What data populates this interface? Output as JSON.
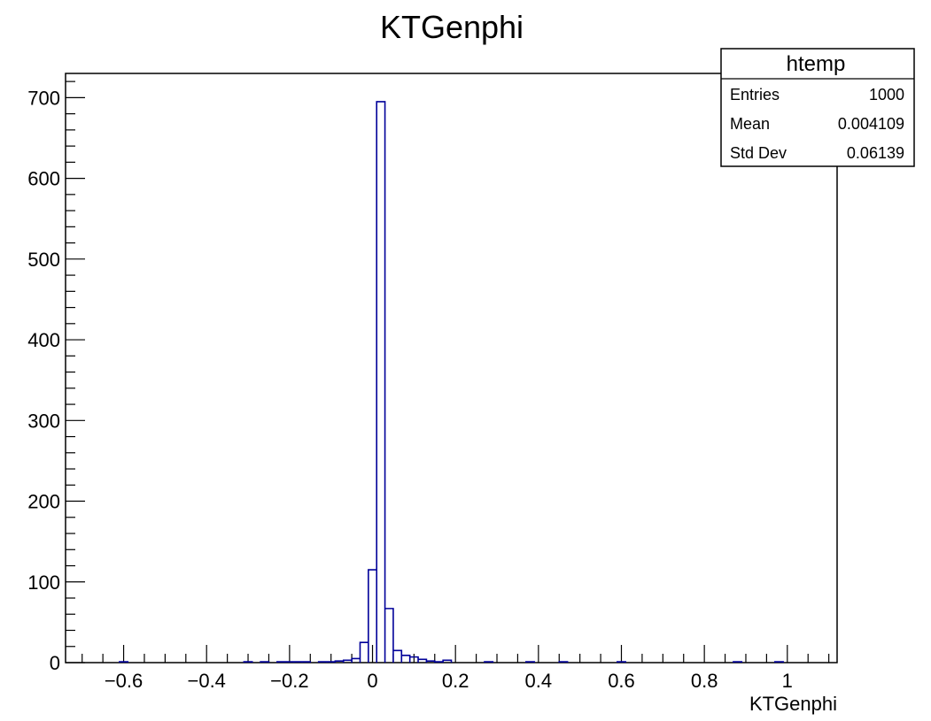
{
  "chart_data": {
    "type": "histogram",
    "title": "KTGenphi",
    "xlabel": "KTGenphi",
    "ylabel": "",
    "xlim": [
      -0.74,
      1.12
    ],
    "ylim": [
      0,
      730
    ],
    "grid": false,
    "x_ticks": [
      {
        "value": -0.6,
        "label": "−0.6"
      },
      {
        "value": -0.4,
        "label": "−0.4"
      },
      {
        "value": -0.2,
        "label": "−0.2"
      },
      {
        "value": 0,
        "label": "0"
      },
      {
        "value": 0.2,
        "label": "0.2"
      },
      {
        "value": 0.4,
        "label": "0.4"
      },
      {
        "value": 0.6,
        "label": "0.6"
      },
      {
        "value": 0.8,
        "label": "0.8"
      },
      {
        "value": 1,
        "label": "1"
      }
    ],
    "y_ticks": [
      {
        "value": 0,
        "label": "0"
      },
      {
        "value": 100,
        "label": "100"
      },
      {
        "value": 200,
        "label": "200"
      },
      {
        "value": 300,
        "label": "300"
      },
      {
        "value": 400,
        "label": "400"
      },
      {
        "value": 500,
        "label": "500"
      },
      {
        "value": 600,
        "label": "600"
      },
      {
        "value": 700,
        "label": "700"
      }
    ],
    "series": [
      {
        "color": "#000099",
        "bins": [
          {
            "x0": -0.61,
            "x1": -0.59,
            "y": 1
          },
          {
            "x0": -0.31,
            "x1": -0.29,
            "y": 1
          },
          {
            "x0": -0.27,
            "x1": -0.25,
            "y": 1
          },
          {
            "x0": -0.23,
            "x1": -0.19,
            "y": 1
          },
          {
            "x0": -0.19,
            "x1": -0.17,
            "y": 1
          },
          {
            "x0": -0.17,
            "x1": -0.15,
            "y": 1
          },
          {
            "x0": -0.13,
            "x1": -0.11,
            "y": 1
          },
          {
            "x0": -0.11,
            "x1": -0.09,
            "y": 1
          },
          {
            "x0": -0.09,
            "x1": -0.07,
            "y": 2
          },
          {
            "x0": -0.07,
            "x1": -0.05,
            "y": 3
          },
          {
            "x0": -0.05,
            "x1": -0.03,
            "y": 5
          },
          {
            "x0": -0.03,
            "x1": -0.01,
            "y": 25
          },
          {
            "x0": -0.01,
            "x1": 0.01,
            "y": 115
          },
          {
            "x0": 0.01,
            "x1": 0.03,
            "y": 695
          },
          {
            "x0": 0.03,
            "x1": 0.05,
            "y": 67
          },
          {
            "x0": 0.05,
            "x1": 0.07,
            "y": 15
          },
          {
            "x0": 0.07,
            "x1": 0.09,
            "y": 9
          },
          {
            "x0": 0.09,
            "x1": 0.11,
            "y": 7
          },
          {
            "x0": 0.11,
            "x1": 0.13,
            "y": 4
          },
          {
            "x0": 0.13,
            "x1": 0.15,
            "y": 2
          },
          {
            "x0": 0.15,
            "x1": 0.17,
            "y": 1
          },
          {
            "x0": 0.17,
            "x1": 0.19,
            "y": 3
          },
          {
            "x0": 0.27,
            "x1": 0.29,
            "y": 1
          },
          {
            "x0": 0.37,
            "x1": 0.39,
            "y": 1
          },
          {
            "x0": 0.45,
            "x1": 0.47,
            "y": 1
          },
          {
            "x0": 0.59,
            "x1": 0.61,
            "y": 1
          },
          {
            "x0": 0.87,
            "x1": 0.89,
            "y": 1
          },
          {
            "x0": 0.97,
            "x1": 0.99,
            "y": 1
          }
        ]
      }
    ]
  },
  "stats_box": {
    "title": "htemp",
    "rows": [
      {
        "label": "Entries",
        "value": "1000"
      },
      {
        "label": "Mean",
        "value": "0.004109"
      },
      {
        "label": "Std Dev",
        "value": "0.06139"
      }
    ]
  },
  "colors": {
    "histogram_line": "#000099",
    "axis": "#000000",
    "background": "#ffffff"
  }
}
